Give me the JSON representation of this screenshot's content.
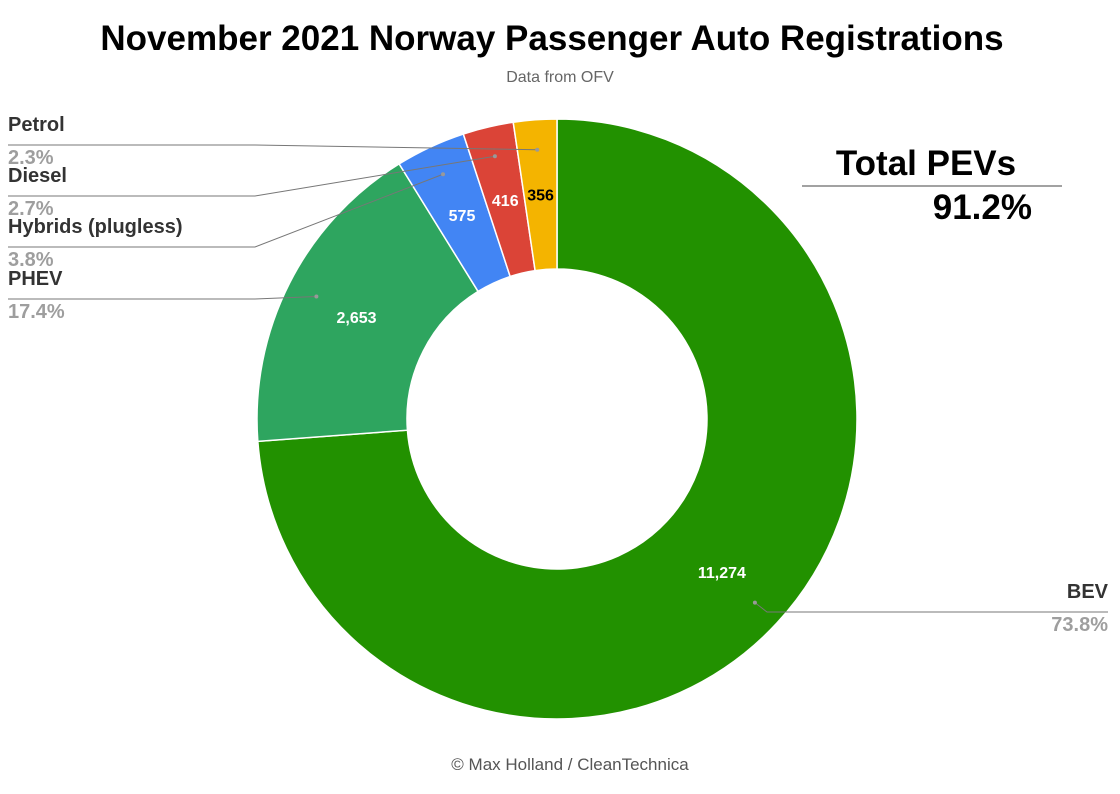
{
  "chart_data": {
    "type": "pie",
    "donut": true,
    "title": "November 2021 Norway Passenger Auto Registrations",
    "subtitle": "Data from OFV",
    "categories": [
      "BEV",
      "PHEV",
      "Hybrids (plugless)",
      "Diesel",
      "Petrol"
    ],
    "values": [
      11274,
      2653,
      575,
      416,
      356
    ],
    "value_labels": [
      "11,274",
      "2,653",
      "575",
      "416",
      "356"
    ],
    "percent_labels": [
      "73.8%",
      "17.4%",
      "3.8%",
      "2.7%",
      "2.3%"
    ],
    "colors": [
      "#229100",
      "#2ea55f",
      "#4285f4",
      "#db4437",
      "#f4b400"
    ],
    "value_label_colors": [
      "#ffffff",
      "#ffffff",
      "#ffffff",
      "#ffffff",
      "#000000"
    ],
    "legend": "none",
    "annotation": {
      "label": "Total PEVs",
      "value": "91.2%"
    }
  },
  "footer": "© Max Holland / CleanTechnica"
}
